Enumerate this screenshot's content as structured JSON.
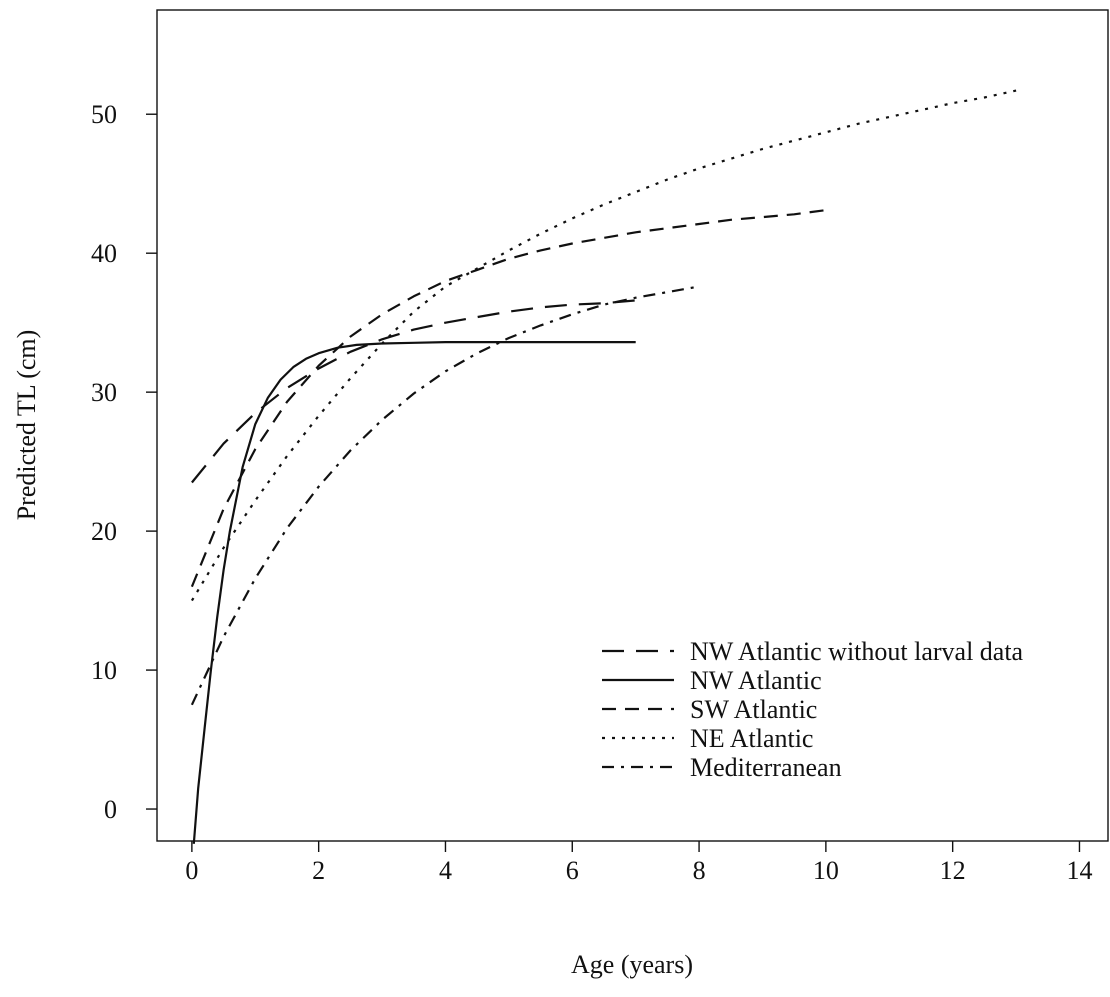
{
  "chart_data": {
    "type": "line",
    "title": "",
    "xlabel": "Age (years)",
    "ylabel": "Predicted TL (cm)",
    "xlim": [
      -0.55,
      14.45
    ],
    "ylim": [
      -2.3,
      57.5
    ],
    "xticks": [
      0,
      2,
      4,
      6,
      8,
      10,
      12,
      14
    ],
    "yticks": [
      0,
      10,
      20,
      30,
      40,
      50
    ],
    "grid": false,
    "legend_position": "bottom-right",
    "series": [
      {
        "name": "NW Atlantic without larval data",
        "dash": "long-dash",
        "x": [
          0,
          0.5,
          1,
          1.5,
          2,
          2.5,
          3,
          3.5,
          4,
          4.5,
          5,
          5.5,
          6,
          6.5,
          7
        ],
        "y": [
          23.5,
          26.3,
          28.5,
          30.3,
          31.7,
          32.9,
          33.8,
          34.5,
          35.0,
          35.4,
          35.8,
          36.1,
          36.3,
          36.4,
          36.6
        ]
      },
      {
        "name": "NW Atlantic",
        "dash": "solid",
        "x": [
          0.03,
          0.1,
          0.2,
          0.3,
          0.4,
          0.5,
          0.6,
          0.8,
          1.0,
          1.2,
          1.4,
          1.6,
          1.8,
          2.0,
          2.3,
          2.6,
          3.0,
          3.5,
          4.0,
          5.0,
          6.0,
          7.0
        ],
        "y": [
          -2.5,
          1.5,
          5.8,
          10.0,
          13.8,
          17.2,
          20.0,
          24.6,
          27.7,
          29.6,
          30.9,
          31.8,
          32.4,
          32.8,
          33.2,
          33.4,
          33.5,
          33.55,
          33.6,
          33.6,
          33.6,
          33.6
        ]
      },
      {
        "name": "SW Atlantic",
        "dash": "dash",
        "x": [
          0,
          0.5,
          1,
          1.5,
          2,
          2.5,
          3,
          3.5,
          4,
          4.5,
          5,
          5.5,
          6,
          6.5,
          7,
          7.5,
          8,
          8.5,
          9,
          9.5,
          10
        ],
        "y": [
          16.0,
          21.6,
          25.9,
          29.3,
          31.9,
          34.0,
          35.6,
          36.9,
          38.0,
          38.8,
          39.6,
          40.2,
          40.7,
          41.1,
          41.5,
          41.8,
          42.1,
          42.4,
          42.6,
          42.8,
          43.1
        ]
      },
      {
        "name": "NE Atlantic",
        "dash": "dotted",
        "x": [
          0,
          0.5,
          1,
          1.5,
          2,
          2.5,
          3,
          3.5,
          4,
          4.5,
          5,
          5.5,
          6,
          6.5,
          7,
          7.5,
          8,
          8.5,
          9,
          9.5,
          10,
          10.5,
          11,
          11.5,
          12,
          12.5,
          13
        ],
        "y": [
          15.0,
          18.8,
          22.2,
          25.4,
          28.3,
          31.0,
          33.5,
          35.8,
          37.6,
          38.9,
          40.2,
          41.4,
          42.5,
          43.5,
          44.4,
          45.3,
          46.1,
          46.8,
          47.5,
          48.1,
          48.7,
          49.3,
          49.8,
          50.3,
          50.8,
          51.2,
          51.7
        ]
      },
      {
        "name": "Mediterranean",
        "dash": "dash-dot",
        "x": [
          0,
          0.5,
          1,
          1.5,
          2,
          2.5,
          3,
          3.5,
          4,
          4.5,
          5,
          5.5,
          6,
          6.5,
          7,
          7.5,
          8
        ],
        "y": [
          7.5,
          12.4,
          16.6,
          20.2,
          23.2,
          25.8,
          28.0,
          29.9,
          31.5,
          32.8,
          33.9,
          34.8,
          35.6,
          36.3,
          36.8,
          37.2,
          37.6
        ]
      }
    ]
  }
}
